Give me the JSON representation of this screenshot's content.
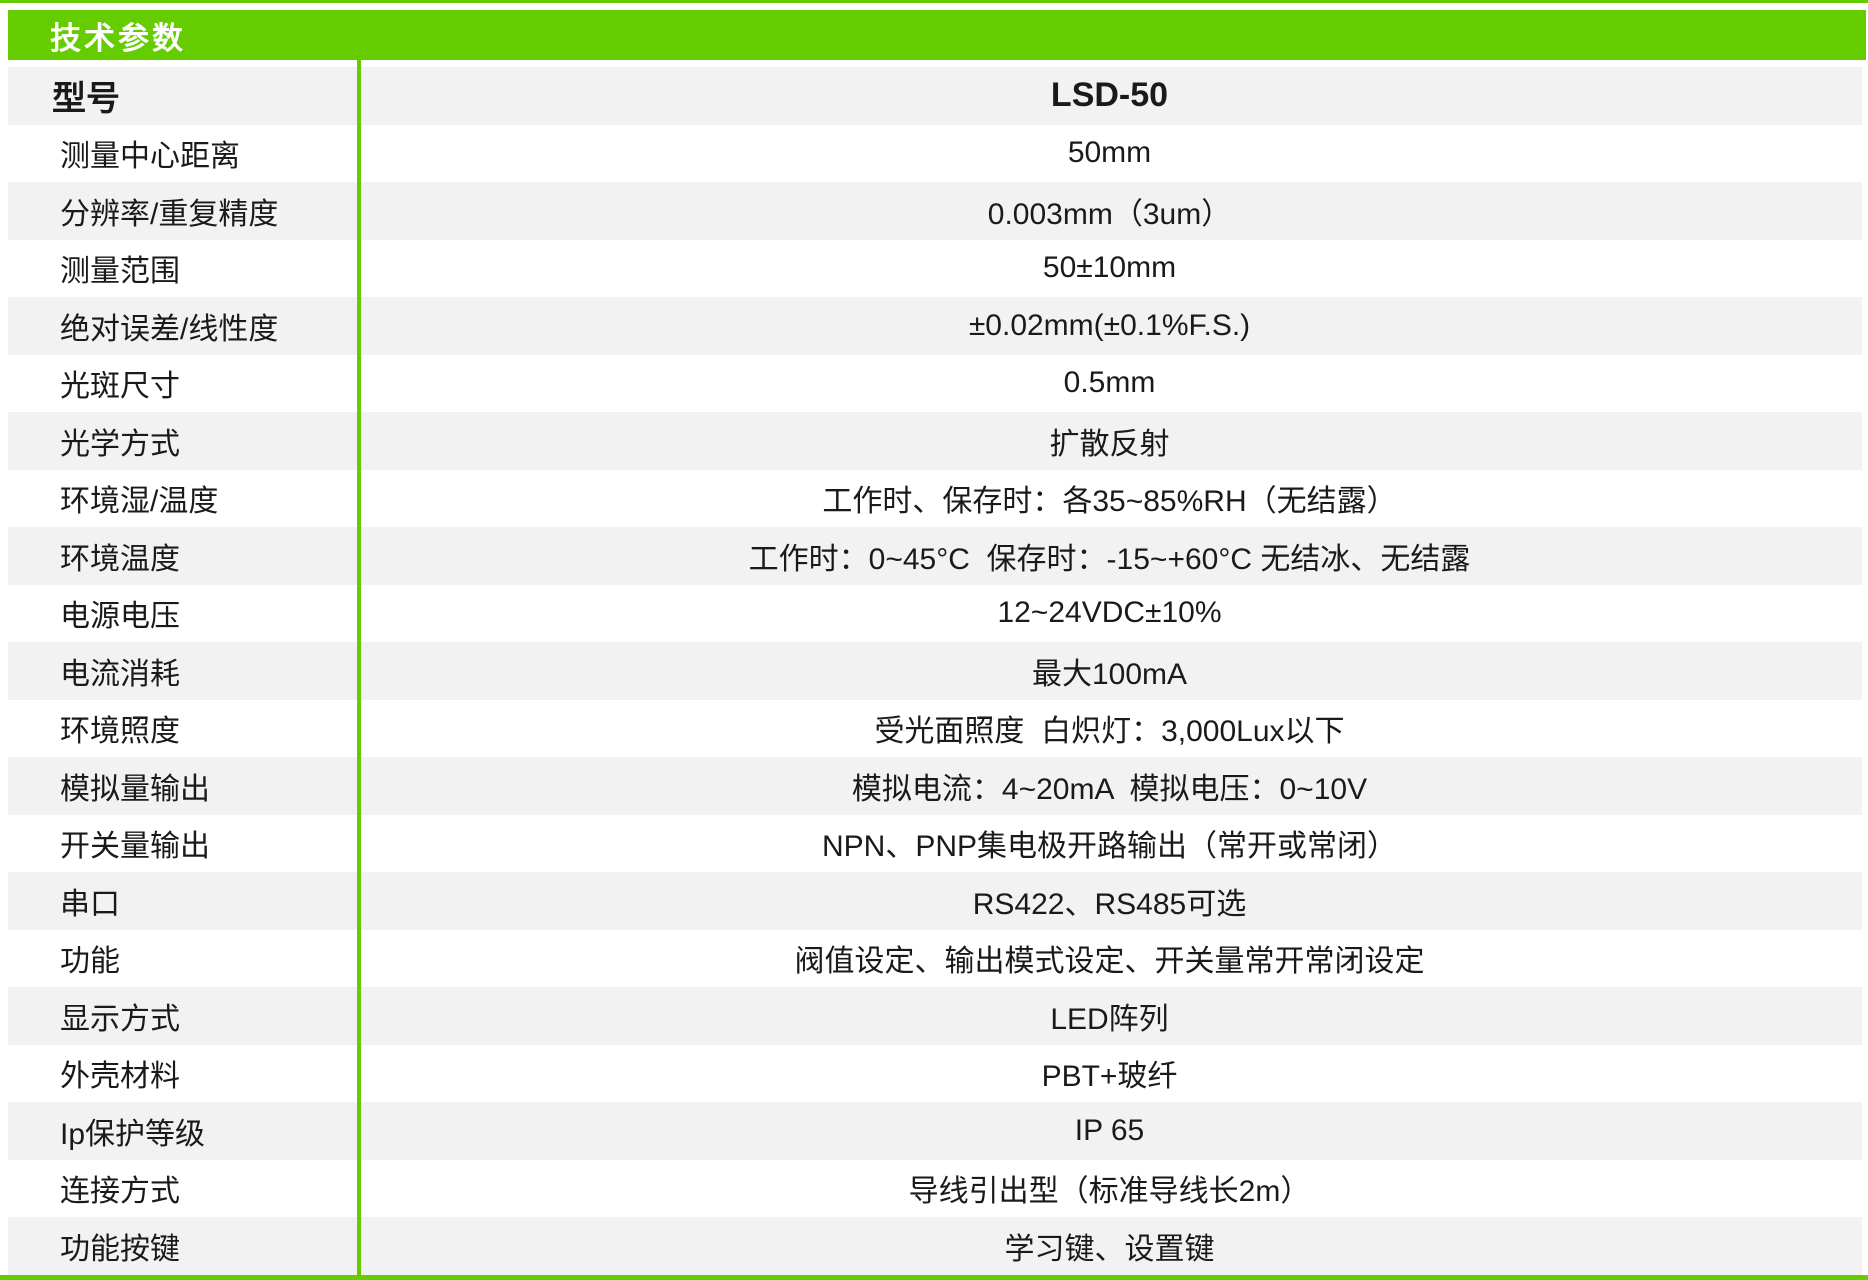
{
  "header": {
    "title": "技术参数"
  },
  "theme": {
    "accent_green": "#65cc00",
    "row_alt_bg": "#f2f2f2",
    "row_bg": "#ffffff",
    "text_color": "#1a1a1a",
    "header_text_color": "#ffffff"
  },
  "table": {
    "rows": [
      {
        "label": "型号",
        "value": "LSD-50"
      },
      {
        "label": "测量中心距离",
        "value": "50mm"
      },
      {
        "label": "分辨率/重复精度",
        "value": "0.003mm（3um）"
      },
      {
        "label": "测量范围",
        "value": "50±10mm"
      },
      {
        "label": "绝对误差/线性度",
        "value": "±0.02mm(±0.1%F.S.)"
      },
      {
        "label": "光斑尺寸",
        "value": "0.5mm"
      },
      {
        "label": "光学方式",
        "value": "扩散反射"
      },
      {
        "label": "环境湿/温度",
        "value": "工作时、保存时：各35~85%RH（无结露）"
      },
      {
        "label": "环境温度",
        "value": "工作时：0~45°C  保存时：-15~+60°C 无结冰、无结露"
      },
      {
        "label": "电源电压",
        "value": "12~24VDC±10%"
      },
      {
        "label": "电流消耗",
        "value": "最大100mA"
      },
      {
        "label": "环境照度",
        "value": "受光面照度  白炽灯：3,000Lux以下"
      },
      {
        "label": "模拟量输出",
        "value": "模拟电流：4~20mA  模拟电压：0~10V"
      },
      {
        "label": "开关量输出",
        "value": "NPN、PNP集电极开路输出（常开或常闭）"
      },
      {
        "label": "串口",
        "value": "RS422、RS485可选"
      },
      {
        "label": "功能",
        "value": "阀值设定、输出模式设定、开关量常开常闭设定"
      },
      {
        "label": "显示方式",
        "value": "LED阵列"
      },
      {
        "label": "外壳材料",
        "value": "PBT+玻纤"
      },
      {
        "label": "Ip保护等级",
        "value": "IP 65"
      },
      {
        "label": "连接方式",
        "value": "导线引出型（标准导线长2m）"
      },
      {
        "label": "功能按键",
        "value": "学习键、设置键"
      }
    ]
  }
}
